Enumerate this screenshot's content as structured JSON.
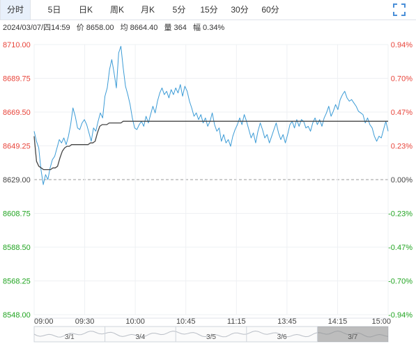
{
  "tabs": [
    {
      "label": "分时",
      "active": true
    },
    {
      "label": "5日"
    },
    {
      "label": "日K"
    },
    {
      "label": "周K"
    },
    {
      "label": "月K"
    },
    {
      "label": "5分"
    },
    {
      "label": "15分"
    },
    {
      "label": "30分"
    },
    {
      "label": "60分"
    }
  ],
  "info": {
    "datetime": "2024/03/07/四14:59",
    "price": "价 8658.00",
    "avg": "均 8664.40",
    "volume": "量 364",
    "change": "幅 0.34%"
  },
  "colors": {
    "price_line": "#3b9bd6",
    "avg_line": "#444444",
    "up": "#e8443a",
    "down": "#21a421",
    "grid": "#eef0f3",
    "baseline": "#9a9a9a",
    "tab_active_bg": "#e8f0fb",
    "icon": "#4a8fd8"
  },
  "fullscreen_icon": "fullscreen-icon",
  "chart_data": {
    "type": "line",
    "ylim": [
      8548.0,
      8710.0
    ],
    "base_price": 8629.0,
    "y_ticks_left": [
      "8710.00",
      "8689.75",
      "8669.50",
      "8649.25",
      "8629.00",
      "8608.75",
      "8588.50",
      "8568.25",
      "8548.00"
    ],
    "y_ticks_right": [
      "0.94%",
      "0.70%",
      "0.47%",
      "0.23%",
      "0.00%",
      "-0.23%",
      "-0.47%",
      "-0.70%",
      "-0.94%"
    ],
    "x_ticks": [
      "09:00",
      "09:30",
      "10:00",
      "10:45",
      "11:15",
      "13:45",
      "14:15",
      "15:00"
    ],
    "series": [
      {
        "values": [
          8658,
          8652,
          8648,
          8635,
          8626,
          8632,
          8629,
          8636,
          8641,
          8643,
          8648,
          8653,
          8651,
          8654,
          8650,
          8655,
          8662,
          8672,
          8667,
          8660,
          8659,
          8663,
          8665,
          8662,
          8657,
          8652,
          8660,
          8658,
          8664,
          8669,
          8666,
          8679,
          8684,
          8695,
          8701,
          8693,
          8684,
          8705,
          8709,
          8696,
          8685,
          8680,
          8674,
          8666,
          8660,
          8659,
          8662,
          8664,
          8661,
          8667,
          8663,
          8668,
          8673,
          8669,
          8676,
          8681,
          8684,
          8680,
          8682,
          8678,
          8683,
          8680,
          8684,
          8681,
          8686,
          8679,
          8685,
          8682,
          8676,
          8672,
          8667,
          8669,
          8665,
          8668,
          8663,
          8666,
          8661,
          8664,
          8669,
          8662,
          8658,
          8660,
          8652,
          8656,
          8651,
          8653,
          8649,
          8655,
          8659,
          8662,
          8666,
          8662,
          8668,
          8664,
          8659,
          8654,
          8657,
          8651,
          8658,
          8663,
          8659,
          8654,
          8656,
          8651,
          8655,
          8659,
          8663,
          8657,
          8653,
          8656,
          8651,
          8656,
          8662,
          8664,
          8660,
          8665,
          8661,
          8665,
          8664,
          8660,
          8661,
          8658,
          8663,
          8666,
          8662,
          8665,
          8661,
          8666,
          8669,
          8673,
          8667,
          8670,
          8674,
          8671,
          8677,
          8680,
          8682,
          8678,
          8676,
          8677,
          8675,
          8673,
          8670,
          8669,
          8668,
          8663,
          8666,
          8662,
          8660,
          8655,
          8652,
          8655,
          8654,
          8659,
          8664,
          8658
        ],
        "color": "#3b9bd6"
      },
      {
        "values": [
          8655,
          8640,
          8637,
          8636,
          8635,
          8635,
          8635,
          8635,
          8636,
          8636,
          8637,
          8642,
          8646,
          8648,
          8649,
          8649,
          8650,
          8650,
          8650,
          8650,
          8650,
          8650,
          8650,
          8650,
          8651,
          8651,
          8652,
          8657,
          8661,
          8662,
          8662,
          8662,
          8663,
          8663,
          8663,
          8663,
          8663,
          8663,
          8664,
          8664,
          8664,
          8664,
          8664,
          8664,
          8664,
          8664,
          8664,
          8664,
          8664,
          8664,
          8664,
          8664,
          8664,
          8664,
          8664,
          8664,
          8664,
          8664,
          8664,
          8664,
          8664,
          8664,
          8664,
          8664,
          8664,
          8664,
          8664,
          8664,
          8664,
          8664,
          8664,
          8664,
          8664,
          8664,
          8664,
          8664,
          8664,
          8664,
          8664,
          8664,
          8664,
          8664,
          8664,
          8664,
          8664,
          8664,
          8664,
          8664,
          8664,
          8664,
          8664,
          8664,
          8664,
          8664,
          8664,
          8664,
          8664,
          8664,
          8664,
          8664,
          8664,
          8664,
          8664,
          8664,
          8664,
          8664,
          8664,
          8664,
          8664,
          8664,
          8664,
          8664,
          8664,
          8664,
          8664,
          8664,
          8664,
          8664,
          8664,
          8664,
          8664,
          8664,
          8664,
          8664,
          8664,
          8664,
          8664,
          8664,
          8664,
          8664,
          8664,
          8664,
          8664,
          8664,
          8664,
          8664,
          8664,
          8664,
          8664,
          8664,
          8664,
          8664,
          8664,
          8664,
          8664,
          8664,
          8664,
          8664,
          8664,
          8664,
          8664,
          8664
        ],
        "color": "#444444"
      }
    ]
  },
  "navigator": {
    "dates": [
      "3/1",
      "3/4",
      "3/5",
      "3/6",
      "3/7"
    ],
    "selected_index": 4
  }
}
